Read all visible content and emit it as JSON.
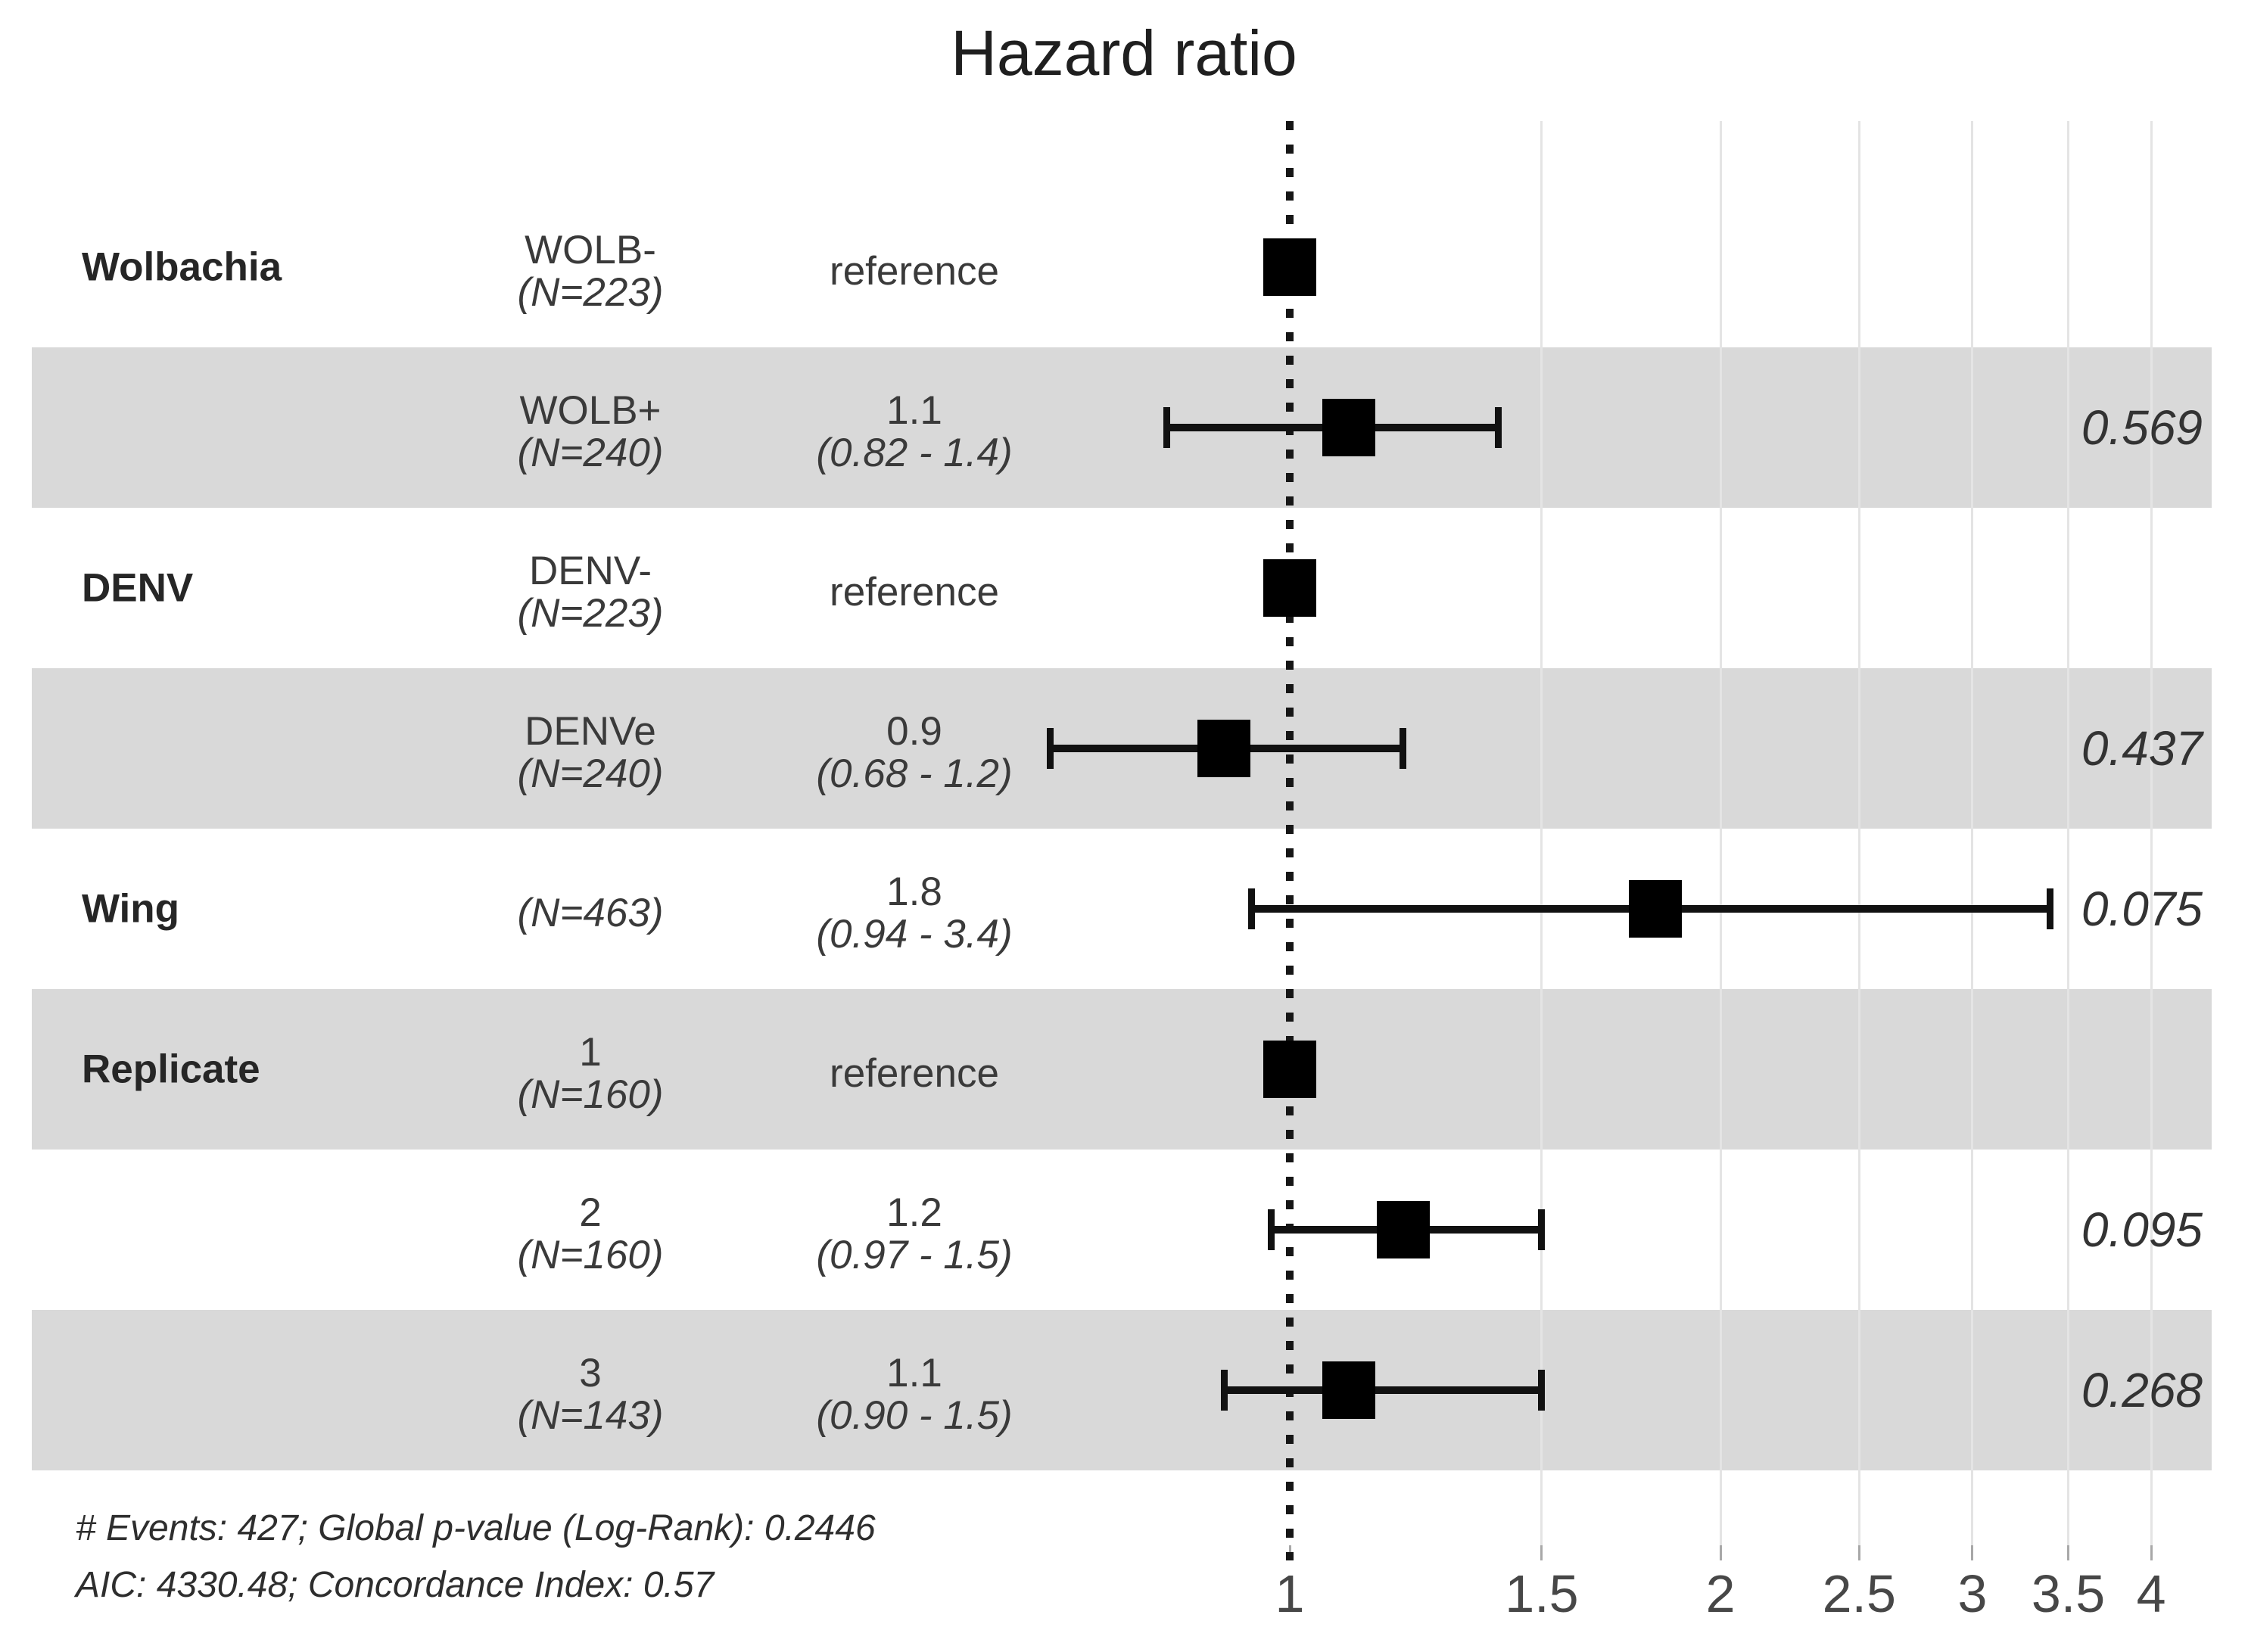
{
  "title": "Hazard ratio",
  "footnotes": {
    "line1": "# Events: 427; Global p-value (Log-Rank): 0.2446",
    "line2": "AIC: 4330.48; Concordance Index: 0.57"
  },
  "chart_data": {
    "type": "forest",
    "title": "Hazard ratio",
    "scale": "log",
    "x_ticks": [
      1,
      1.5,
      2,
      2.5,
      3,
      3.5,
      4
    ],
    "xlim": [
      0.62,
      4.15
    ],
    "reference_line": 1,
    "grid": true,
    "colors": {
      "band": "#d9d9d9",
      "gridline": "#e4e4e4",
      "marker": "#000000",
      "text": "#3a3a3a"
    },
    "rows": [
      {
        "group": "Wolbachia",
        "level": "WOLB-",
        "n": "(N=223)",
        "estimate_label": "reference",
        "reference": true,
        "estimate": 1.0,
        "shaded": false
      },
      {
        "group": "",
        "level": "WOLB+",
        "n": "(N=240)",
        "estimate_label": "1.1",
        "ci_label": "(0.82 - 1.4)",
        "reference": false,
        "estimate": 1.1,
        "ci_low": 0.82,
        "ci_high": 1.4,
        "p_value": "0.569",
        "shaded": true
      },
      {
        "group": "DENV",
        "level": "DENV-",
        "n": "(N=223)",
        "estimate_label": "reference",
        "reference": true,
        "estimate": 1.0,
        "shaded": false
      },
      {
        "group": "",
        "level": "DENVe",
        "n": "(N=240)",
        "estimate_label": "0.9",
        "ci_label": "(0.68 - 1.2)",
        "reference": false,
        "estimate": 0.9,
        "ci_low": 0.68,
        "ci_high": 1.2,
        "p_value": "0.437",
        "shaded": true
      },
      {
        "group": "Wing",
        "level": "",
        "n": "(N=463)",
        "estimate_label": "1.8",
        "ci_label": "(0.94 - 3.4)",
        "reference": false,
        "estimate": 1.8,
        "ci_low": 0.94,
        "ci_high": 3.4,
        "p_value": "0.075",
        "shaded": false
      },
      {
        "group": "Replicate",
        "level": "1",
        "n": "(N=160)",
        "estimate_label": "reference",
        "reference": true,
        "estimate": 1.0,
        "shaded": true
      },
      {
        "group": "",
        "level": "2",
        "n": "(N=160)",
        "estimate_label": "1.2",
        "ci_label": "(0.97 - 1.5)",
        "reference": false,
        "estimate": 1.2,
        "ci_low": 0.97,
        "ci_high": 1.5,
        "p_value": "0.095",
        "shaded": false
      },
      {
        "group": "",
        "level": "3",
        "n": "(N=143)",
        "estimate_label": "1.1",
        "ci_label": "(0.90 - 1.5)",
        "reference": false,
        "estimate": 1.1,
        "ci_low": 0.9,
        "ci_high": 1.5,
        "p_value": "0.268",
        "shaded": true
      }
    ]
  }
}
